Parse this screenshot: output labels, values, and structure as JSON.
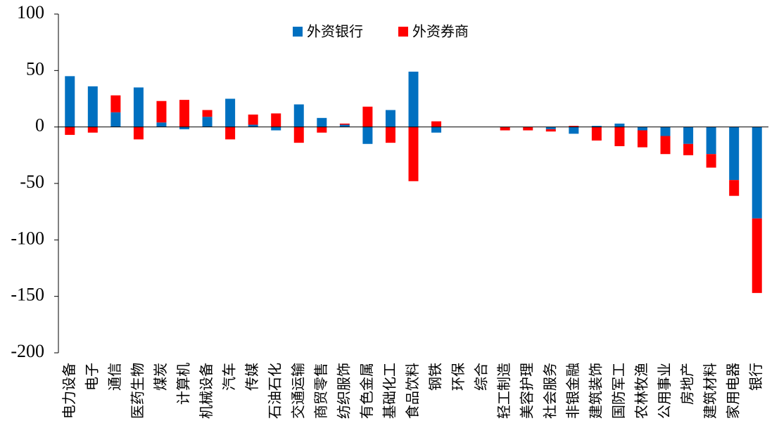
{
  "chart_data": {
    "type": "bar",
    "stacked": true,
    "legend_position": "top-center",
    "grid": false,
    "ylim": [
      -200,
      100
    ],
    "yticks": [
      100,
      50,
      0,
      -50,
      -100,
      -150,
      -200
    ],
    "categories": [
      "电力设备",
      "电子",
      "通信",
      "医药生物",
      "煤炭",
      "计算机",
      "机械设备",
      "汽车",
      "传媒",
      "石油石化",
      "交通运输",
      "商贸零售",
      "纺织服饰",
      "有色金属",
      "基础化工",
      "食品饮料",
      "钢铁",
      "环保",
      "综合",
      "轻工制造",
      "美容护理",
      "社会服务",
      "非银金融",
      "建筑装饰",
      "国防军工",
      "农林牧渔",
      "公用事业",
      "房地产",
      "建筑材料",
      "家用电器",
      "银行"
    ],
    "series": [
      {
        "name": "外资银行",
        "color": "#0070C0",
        "values": [
          45,
          36,
          13,
          35,
          4,
          -2,
          9,
          25,
          2,
          -3,
          20,
          8,
          2,
          -15,
          15,
          49,
          -5,
          0,
          0,
          0,
          0,
          -2,
          -6,
          1,
          3,
          -3,
          -8,
          -15,
          -24,
          -47,
          -81
        ]
      },
      {
        "name": "外资券商",
        "color": "#FF0000",
        "values": [
          -7,
          -5,
          15,
          -11,
          19,
          24,
          6,
          -11,
          9,
          12,
          -14,
          -5,
          1,
          18,
          -14,
          -48,
          5,
          0,
          0,
          -3,
          -3,
          -2,
          1,
          -12,
          -17,
          -15,
          -16,
          -10,
          -12,
          -14,
          -66
        ]
      }
    ]
  }
}
